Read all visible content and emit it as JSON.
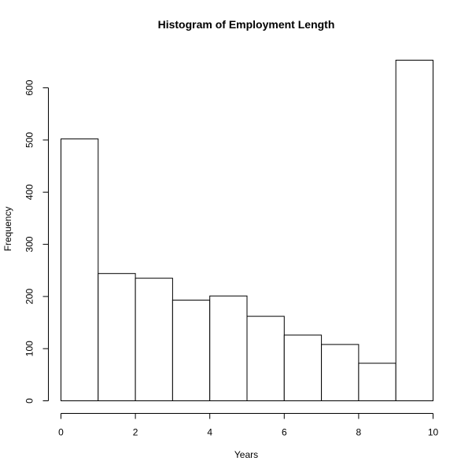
{
  "chart_data": {
    "type": "bar",
    "title": "Histogram of Employment Length",
    "xlabel": "Years",
    "ylabel": "Frequency",
    "bins": [
      {
        "from": 0,
        "to": 1,
        "count": 502
      },
      {
        "from": 1,
        "to": 2,
        "count": 244
      },
      {
        "from": 2,
        "to": 3,
        "count": 235
      },
      {
        "from": 3,
        "to": 4,
        "count": 193
      },
      {
        "from": 4,
        "to": 5,
        "count": 201
      },
      {
        "from": 5,
        "to": 6,
        "count": 162
      },
      {
        "from": 6,
        "to": 7,
        "count": 126
      },
      {
        "from": 7,
        "to": 8,
        "count": 108
      },
      {
        "from": 8,
        "to": 9,
        "count": 72
      },
      {
        "from": 9,
        "to": 10,
        "count": 653
      }
    ],
    "xlim": [
      0,
      10
    ],
    "ylim": [
      0,
      653
    ],
    "x_ticks": [
      0,
      2,
      4,
      6,
      8,
      10
    ],
    "y_ticks": [
      0,
      100,
      200,
      300,
      400,
      500,
      600
    ],
    "bar_fill": "#ffffff",
    "bar_stroke": "#000000",
    "grid": false,
    "legend": "none"
  }
}
